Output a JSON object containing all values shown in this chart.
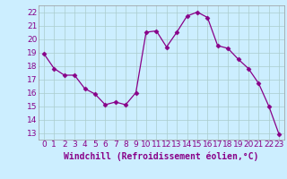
{
  "x": [
    0,
    1,
    2,
    3,
    4,
    5,
    6,
    7,
    8,
    9,
    10,
    11,
    12,
    13,
    14,
    15,
    16,
    17,
    18,
    19,
    20,
    21,
    22,
    23
  ],
  "y": [
    18.9,
    17.8,
    17.3,
    17.3,
    16.3,
    15.9,
    15.1,
    15.3,
    15.1,
    16.0,
    20.5,
    20.6,
    19.4,
    20.5,
    21.7,
    22.0,
    21.6,
    19.5,
    19.3,
    18.5,
    17.8,
    16.7,
    15.0,
    12.9
  ],
  "line_color": "#880088",
  "marker": "D",
  "marker_size": 2.5,
  "bg_color": "#cceeff",
  "grid_color": "#aacccc",
  "xlabel": "Windchill (Refroidissement éolien,°C)",
  "xlabel_fontsize": 7,
  "xlabel_color": "#880088",
  "ylabel_ticks": [
    13,
    14,
    15,
    16,
    17,
    18,
    19,
    20,
    21,
    22
  ],
  "xlim": [
    -0.5,
    23.5
  ],
  "ylim": [
    12.5,
    22.5
  ],
  "xticks": [
    0,
    1,
    2,
    3,
    4,
    5,
    6,
    7,
    8,
    9,
    10,
    11,
    12,
    13,
    14,
    15,
    16,
    17,
    18,
    19,
    20,
    21,
    22,
    23
  ],
  "tick_fontsize": 6.5,
  "tick_color": "#880088"
}
